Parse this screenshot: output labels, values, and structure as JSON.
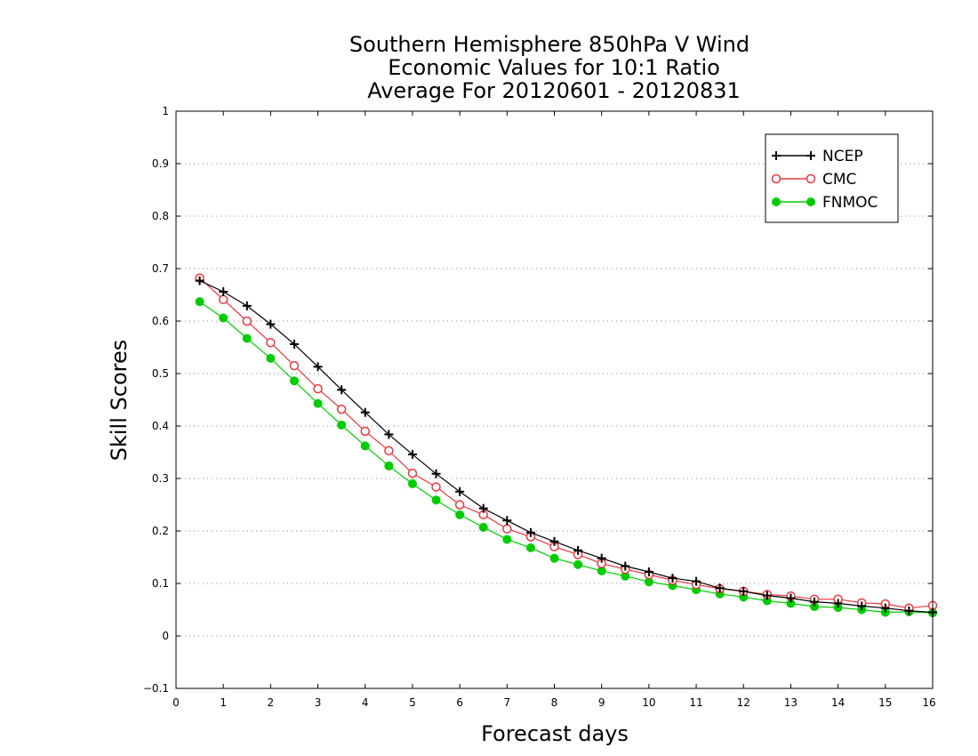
{
  "chart_data": {
    "type": "line",
    "title_lines": [
      "Southern Hemisphere 850hPa V Wind",
      "Economic Values for 10:1 Ratio",
      "Average For 20120601 - 20120831"
    ],
    "xlabel": "Forecast days",
    "ylabel": "Skill Scores",
    "xlim": [
      0,
      16
    ],
    "ylim": [
      -0.1,
      1
    ],
    "xticks": [
      "0",
      "1",
      "2",
      "3",
      "4",
      "5",
      "6",
      "7",
      "8",
      "9",
      "10",
      "11",
      "12",
      "13",
      "14",
      "15",
      "16"
    ],
    "yticks": [
      "−0.1",
      "0",
      "0.1",
      "0.2",
      "0.3",
      "0.4",
      "0.5",
      "0.6",
      "0.7",
      "0.8",
      "0.9",
      "1"
    ],
    "grid": "horizontal dotted",
    "legend_position": "top-right",
    "x": [
      0.5,
      1,
      1.5,
      2,
      2.5,
      3,
      3.5,
      4,
      4.5,
      5,
      5.5,
      6,
      6.5,
      7,
      7.5,
      8,
      8.5,
      9,
      9.5,
      10,
      10.5,
      11,
      11.5,
      12,
      12.5,
      13,
      13.5,
      14,
      14.5,
      15,
      15.5,
      16
    ],
    "series": [
      {
        "name": "NCEP",
        "color": "#000000",
        "marker": "plus",
        "values": [
          0.677,
          0.656,
          0.629,
          0.594,
          0.556,
          0.513,
          0.469,
          0.426,
          0.384,
          0.346,
          0.309,
          0.275,
          0.243,
          0.22,
          0.197,
          0.18,
          0.163,
          0.148,
          0.133,
          0.122,
          0.11,
          0.104,
          0.091,
          0.085,
          0.077,
          0.072,
          0.065,
          0.062,
          0.057,
          0.053,
          0.048,
          0.045
        ]
      },
      {
        "name": "CMC",
        "color": "#e8383d",
        "marker": "open-circle",
        "values": [
          0.682,
          0.641,
          0.6,
          0.559,
          0.515,
          0.471,
          0.432,
          0.39,
          0.353,
          0.31,
          0.284,
          0.25,
          0.231,
          0.204,
          0.189,
          0.17,
          0.155,
          0.138,
          0.127,
          0.117,
          0.106,
          0.098,
          0.09,
          0.085,
          0.079,
          0.076,
          0.07,
          0.07,
          0.063,
          0.061,
          0.053,
          0.058
        ]
      },
      {
        "name": "FNMOC",
        "color": "#00cc00",
        "marker": "filled-circle",
        "values": [
          0.637,
          0.606,
          0.567,
          0.529,
          0.486,
          0.443,
          0.402,
          0.362,
          0.324,
          0.29,
          0.259,
          0.231,
          0.207,
          0.184,
          0.168,
          0.148,
          0.136,
          0.124,
          0.114,
          0.103,
          0.096,
          0.088,
          0.08,
          0.074,
          0.067,
          0.062,
          0.056,
          0.054,
          0.05,
          0.045,
          0.046,
          0.044
        ]
      }
    ]
  }
}
